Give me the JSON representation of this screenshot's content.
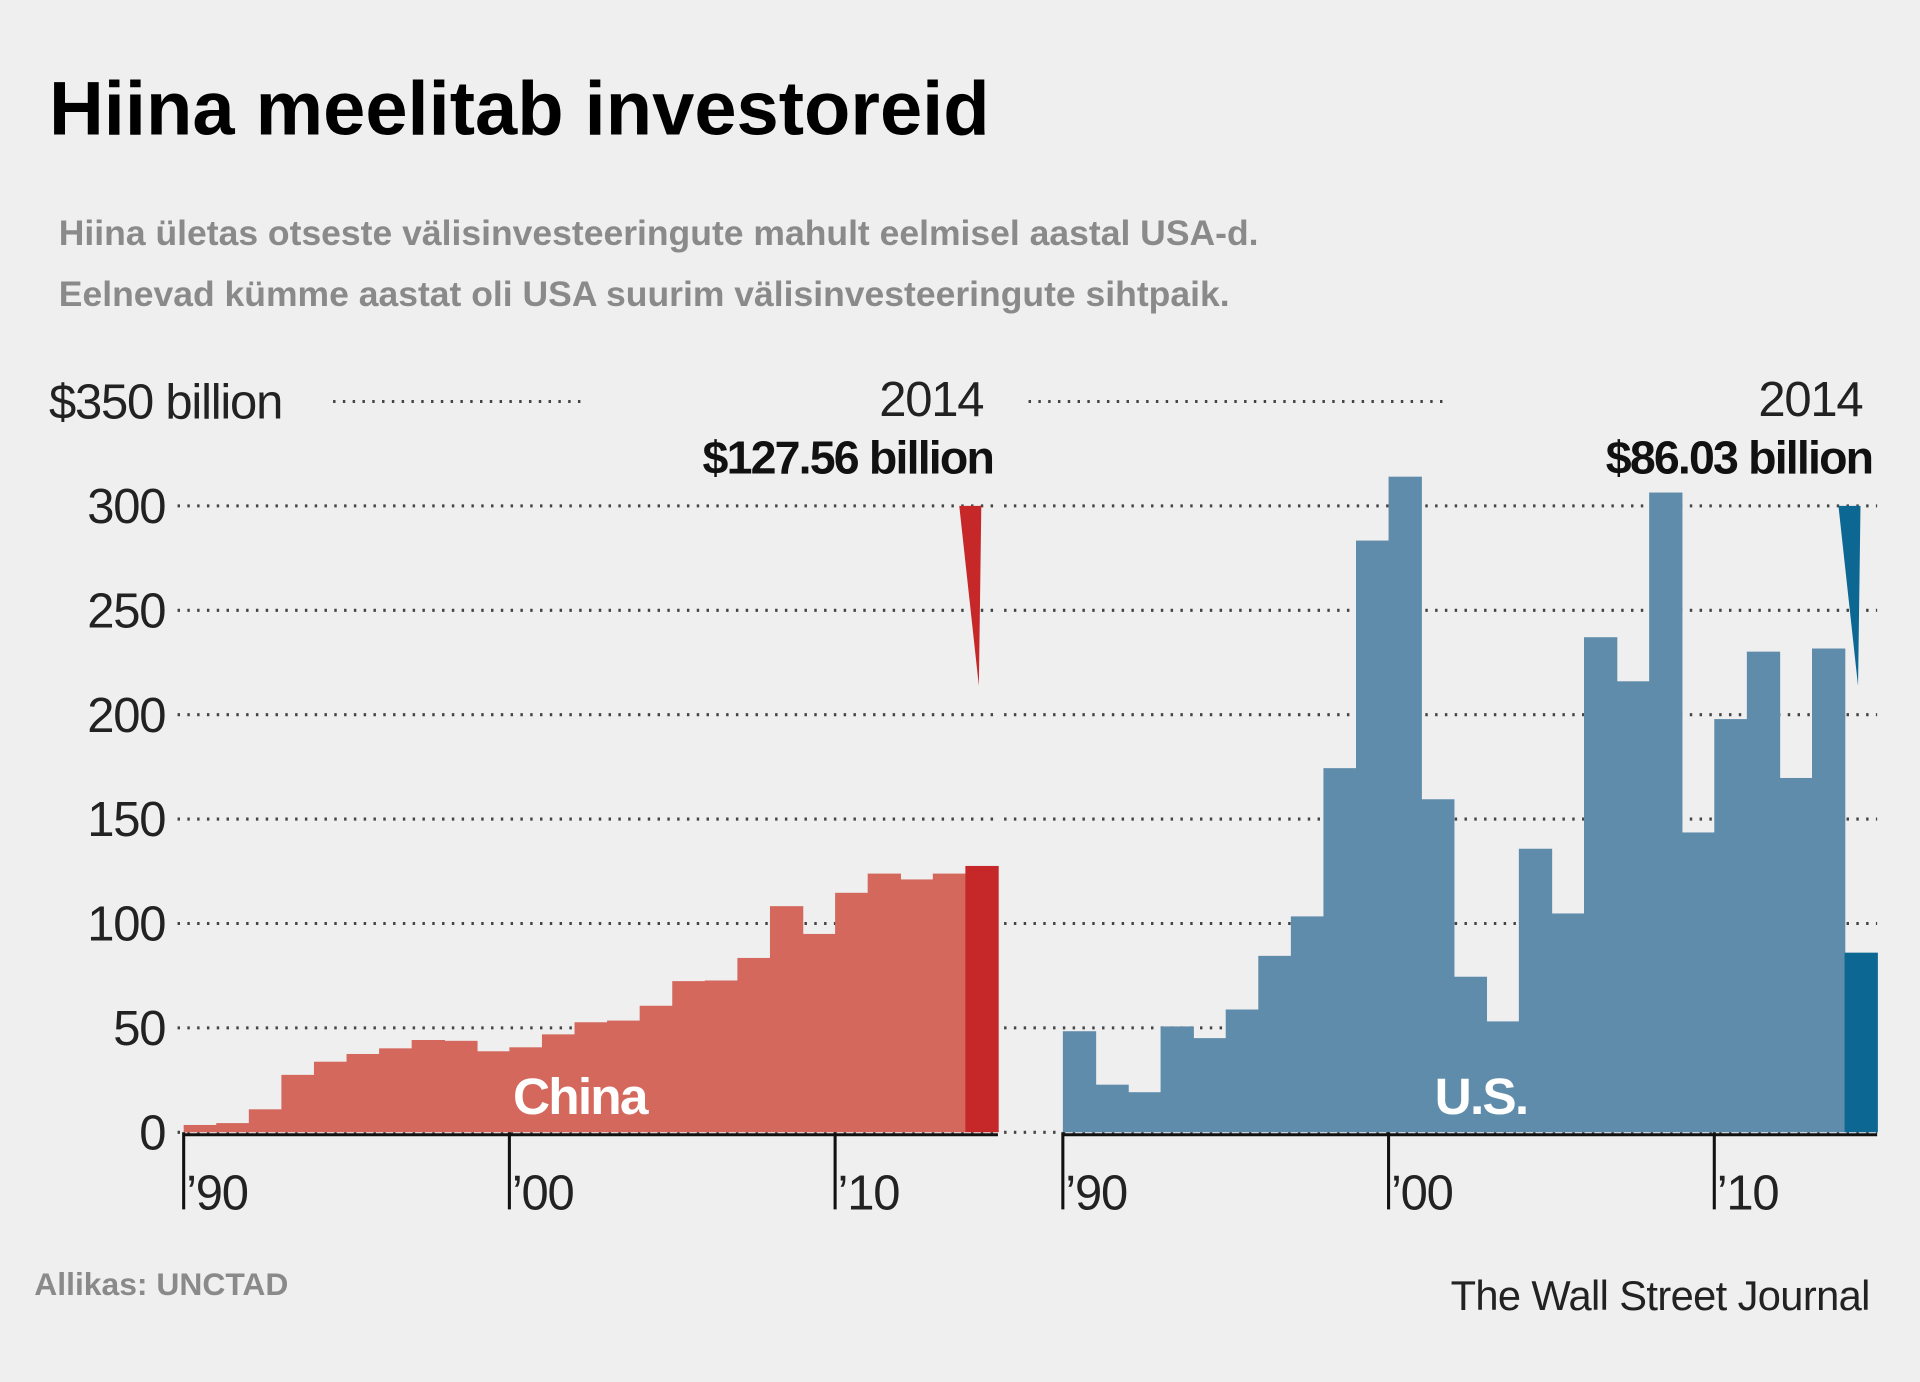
{
  "title": "Hiina meelitab investoreid",
  "subtitle": [
    "Hiina ületas otseste välisinvesteeringute mahult eelmisel aastal USA-d.",
    "Eelnevad kümme aastat oli USA suurim välisinvesteeringute sihtpaik."
  ],
  "source": "Allikas: UNCTAD",
  "credit": "The Wall Street Journal",
  "chart_data": [
    {
      "type": "bar",
      "x": [
        1990,
        1991,
        1992,
        1993,
        1994,
        1995,
        1996,
        1997,
        1998,
        1999,
        2000,
        2001,
        2002,
        2003,
        2004,
        2005,
        2006,
        2007,
        2008,
        2009,
        2010,
        2011,
        2012,
        2013,
        2014
      ],
      "xlim": [
        1990,
        2015
      ],
      "xticks": [
        {
          "value": 1990,
          "label": "’90"
        },
        {
          "value": 2000,
          "label": "’00"
        },
        {
          "value": 2010,
          "label": "’10"
        }
      ],
      "ylim": [
        0,
        350
      ],
      "yticks": [
        0,
        50,
        100,
        150,
        200,
        250,
        300,
        {
          "value": 350,
          "label": "$350 billion"
        }
      ],
      "grid": true,
      "series": [
        {
          "name": "China",
          "color": "#d4685d",
          "highlight_color": "#c6282a",
          "values": [
            3.5,
            4.4,
            11,
            27.5,
            33.8,
            37.5,
            40.2,
            44.2,
            43.8,
            38.8,
            40.7,
            46.9,
            52.7,
            53.5,
            60.6,
            72.4,
            72.7,
            83.5,
            108.3,
            95,
            114.7,
            123.9,
            121.1,
            123.9,
            127.56
          ],
          "value_labels": [
            null,
            null,
            null,
            null,
            null,
            null,
            null,
            null,
            null,
            null,
            null,
            null,
            null,
            null,
            null,
            null,
            null,
            null,
            null,
            null,
            null,
            null,
            null,
            null,
            "$127.56 billion"
          ]
        }
      ]
    },
    {
      "type": "bar",
      "x": [
        1990,
        1991,
        1992,
        1993,
        1994,
        1995,
        1996,
        1997,
        1998,
        1999,
        2000,
        2001,
        2002,
        2003,
        2004,
        2005,
        2006,
        2007,
        2008,
        2009,
        2010,
        2011,
        2012,
        2013,
        2014
      ],
      "xlim": [
        1990,
        2015
      ],
      "xticks": [
        {
          "value": 1990,
          "label": "’90"
        },
        {
          "value": 2000,
          "label": "’00"
        },
        {
          "value": 2010,
          "label": "’10"
        }
      ],
      "ylim": [
        0,
        350
      ],
      "grid": true,
      "series": [
        {
          "name": "U.S.",
          "color": "#5f8cab",
          "highlight_color": "#0c6792",
          "values": [
            48.4,
            22.8,
            19.2,
            50.7,
            45.1,
            58.8,
            84.5,
            103.4,
            174.4,
            283.4,
            314,
            159.5,
            74.5,
            53.1,
            135.8,
            104.8,
            237.1,
            216,
            306.4,
            143.6,
            197.9,
            230.2,
            169.7,
            231.7,
            86.03
          ],
          "value_labels": [
            null,
            null,
            null,
            null,
            null,
            null,
            null,
            null,
            null,
            null,
            null,
            null,
            null,
            null,
            null,
            null,
            null,
            null,
            null,
            null,
            null,
            null,
            null,
            null,
            "$86.03 billion"
          ]
        }
      ]
    }
  ]
}
